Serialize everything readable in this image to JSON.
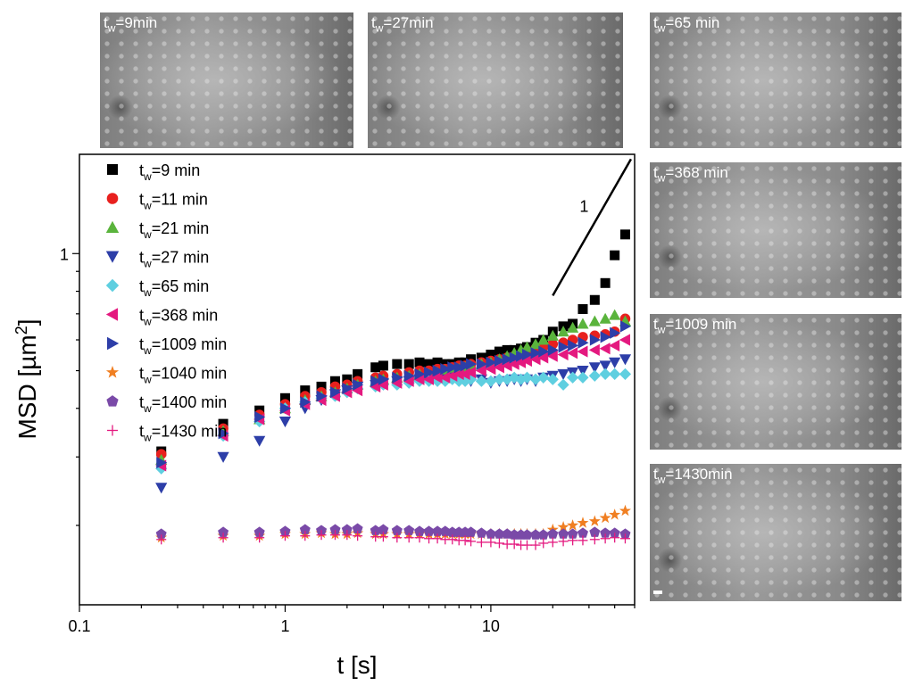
{
  "micrographs": [
    {
      "label": "tw=9min",
      "sub": "w",
      "pre": "t",
      "post": "=9min"
    },
    {
      "label": "tw=27min",
      "pre": "t",
      "sub": "w",
      "post": "=27min"
    },
    {
      "label": "tw=65 min",
      "pre": "t",
      "sub": "w",
      "post": "=65 min"
    },
    {
      "label": "tw=368 min",
      "pre": "t",
      "sub": "w",
      "post": "=368 min"
    },
    {
      "label": "tw=1009 min",
      "pre": "t",
      "sub": "w",
      "post": "=1009 min"
    },
    {
      "label": "tw=1430min",
      "pre": "t",
      "sub": "w",
      "post": "=1430min"
    }
  ],
  "chart_data": {
    "type": "scatter",
    "xlabel": "t [s]",
    "ylabel": "MSD [µm²]",
    "ylabel_main": "MSD [µm",
    "ylabel_sup": "2",
    "ylabel_end": "]",
    "xscale": "log",
    "yscale": "log",
    "xlim": [
      0.1,
      50
    ],
    "ylim": [
      0.125,
      1.8
    ],
    "xticks": [
      {
        "v": 0.1,
        "label": "0.1"
      },
      {
        "v": 1,
        "label": "1"
      },
      {
        "v": 10,
        "label": "10"
      }
    ],
    "yticks": [
      {
        "v": 1,
        "label": "1"
      }
    ],
    "slope_label": "1",
    "legend_position": "top-left",
    "x": [
      0.25,
      0.5,
      0.75,
      1.0,
      1.25,
      1.5,
      1.75,
      2.0,
      2.25,
      2.75,
      3.0,
      3.5,
      4.0,
      4.5,
      5.0,
      5.5,
      6.0,
      6.5,
      7.0,
      7.5,
      8.0,
      9.0,
      10.0,
      11.0,
      12.0,
      13.0,
      14.0,
      15.0,
      16.5,
      18.0,
      20.0,
      22.5,
      25.0,
      28.0,
      32.0,
      36.0,
      40.0,
      45.0
    ],
    "series": [
      {
        "name": "tw=9 min",
        "pre": "t",
        "sub": "w",
        "post": "=9 min",
        "marker": "square",
        "color": "#000000",
        "values": [
          0.31,
          0.365,
          0.395,
          0.425,
          0.445,
          0.455,
          0.47,
          0.475,
          0.49,
          0.51,
          0.515,
          0.52,
          0.52,
          0.525,
          0.52,
          0.525,
          0.52,
          0.52,
          0.525,
          0.525,
          0.535,
          0.54,
          0.55,
          0.56,
          0.565,
          0.565,
          0.57,
          0.575,
          0.59,
          0.6,
          0.63,
          0.65,
          0.66,
          0.72,
          0.76,
          0.84,
          0.99,
          1.12
        ]
      },
      {
        "name": "tw=11 min",
        "pre": "t",
        "sub": "w",
        "post": "=11 min",
        "marker": "circle",
        "color": "#e8201e",
        "values": [
          0.305,
          0.355,
          0.385,
          0.41,
          0.43,
          0.44,
          0.455,
          0.46,
          0.47,
          0.48,
          0.485,
          0.49,
          0.495,
          0.5,
          0.5,
          0.505,
          0.505,
          0.51,
          0.515,
          0.515,
          0.52,
          0.525,
          0.53,
          0.535,
          0.54,
          0.545,
          0.55,
          0.56,
          0.57,
          0.575,
          0.585,
          0.59,
          0.6,
          0.61,
          0.615,
          0.62,
          0.63,
          0.68
        ]
      },
      {
        "name": "tw=21 min",
        "pre": "t",
        "sub": "w",
        "post": "=21 min",
        "marker": "triangle-up",
        "color": "#5ab43c",
        "values": [
          0.295,
          0.35,
          0.375,
          0.4,
          0.42,
          0.43,
          0.44,
          0.45,
          0.46,
          0.47,
          0.475,
          0.48,
          0.485,
          0.49,
          0.49,
          0.495,
          0.5,
          0.5,
          0.505,
          0.51,
          0.515,
          0.52,
          0.525,
          0.535,
          0.545,
          0.555,
          0.565,
          0.575,
          0.585,
          0.6,
          0.615,
          0.63,
          0.645,
          0.66,
          0.67,
          0.68,
          0.695,
          0.67
        ]
      },
      {
        "name": "tw=27 min",
        "pre": "t",
        "sub": "w",
        "post": "=27 min",
        "marker": "triangle-down",
        "color": "#2d3ea8",
        "values": [
          0.25,
          0.3,
          0.33,
          0.37,
          0.4,
          0.42,
          0.435,
          0.445,
          0.455,
          0.46,
          0.465,
          0.47,
          0.47,
          0.475,
          0.475,
          0.48,
          0.475,
          0.48,
          0.48,
          0.475,
          0.47,
          0.475,
          0.465,
          0.47,
          0.47,
          0.475,
          0.47,
          0.475,
          0.47,
          0.48,
          0.485,
          0.49,
          0.495,
          0.5,
          0.51,
          0.515,
          0.525,
          0.535
        ]
      },
      {
        "name": "tw=65 min",
        "pre": "t",
        "sub": "w",
        "post": "=65 min",
        "marker": "diamond",
        "color": "#5fcfe0",
        "values": [
          0.28,
          0.34,
          0.37,
          0.4,
          0.415,
          0.425,
          0.43,
          0.44,
          0.45,
          0.455,
          0.46,
          0.46,
          0.465,
          0.47,
          0.47,
          0.47,
          0.47,
          0.475,
          0.47,
          0.47,
          0.475,
          0.47,
          0.47,
          0.475,
          0.475,
          0.48,
          0.475,
          0.48,
          0.475,
          0.48,
          0.475,
          0.46,
          0.48,
          0.48,
          0.485,
          0.49,
          0.49,
          0.49
        ]
      },
      {
        "name": "tw=368 min",
        "pre": "t",
        "sub": "w",
        "post": "=368 min",
        "marker": "triangle-left",
        "color": "#e4197f",
        "values": [
          0.285,
          0.34,
          0.375,
          0.395,
          0.41,
          0.42,
          0.43,
          0.44,
          0.445,
          0.455,
          0.46,
          0.465,
          0.47,
          0.475,
          0.475,
          0.48,
          0.48,
          0.485,
          0.49,
          0.49,
          0.495,
          0.5,
          0.505,
          0.51,
          0.515,
          0.52,
          0.525,
          0.53,
          0.535,
          0.54,
          0.545,
          0.55,
          0.555,
          0.56,
          0.565,
          0.57,
          0.58,
          0.6
        ]
      },
      {
        "name": "tw=1009 min",
        "pre": "t",
        "sub": "w",
        "post": "=1009 min",
        "marker": "triangle-right",
        "color": "#2d3ea8",
        "values": [
          0.29,
          0.345,
          0.38,
          0.4,
          0.415,
          0.43,
          0.44,
          0.45,
          0.46,
          0.47,
          0.475,
          0.48,
          0.485,
          0.49,
          0.495,
          0.5,
          0.505,
          0.51,
          0.51,
          0.515,
          0.52,
          0.52,
          0.525,
          0.53,
          0.535,
          0.54,
          0.545,
          0.55,
          0.555,
          0.56,
          0.565,
          0.575,
          0.58,
          0.59,
          0.6,
          0.61,
          0.625,
          0.65
        ]
      },
      {
        "name": "tw=1040 min",
        "pre": "t",
        "sub": "w",
        "post": "=1040 min",
        "marker": "star",
        "color": "#f07f22",
        "values": [
          0.186,
          0.188,
          0.188,
          0.19,
          0.19,
          0.191,
          0.19,
          0.19,
          0.191,
          0.19,
          0.19,
          0.19,
          0.19,
          0.19,
          0.19,
          0.19,
          0.19,
          0.19,
          0.19,
          0.19,
          0.19,
          0.19,
          0.19,
          0.19,
          0.19,
          0.19,
          0.19,
          0.19,
          0.19,
          0.19,
          0.195,
          0.198,
          0.2,
          0.203,
          0.205,
          0.209,
          0.213,
          0.218
        ]
      },
      {
        "name": "tw=1400 min",
        "pre": "t",
        "sub": "w",
        "post": "=1400 min",
        "marker": "pentagon",
        "color": "#7a4aa8",
        "values": [
          0.19,
          0.192,
          0.192,
          0.193,
          0.195,
          0.194,
          0.195,
          0.195,
          0.196,
          0.194,
          0.195,
          0.194,
          0.194,
          0.193,
          0.193,
          0.193,
          0.193,
          0.192,
          0.192,
          0.192,
          0.192,
          0.191,
          0.19,
          0.19,
          0.19,
          0.189,
          0.189,
          0.189,
          0.189,
          0.189,
          0.19,
          0.19,
          0.19,
          0.191,
          0.192,
          0.191,
          0.191,
          0.19
        ]
      },
      {
        "name": "tw=1430 min",
        "pre": "t",
        "sub": "w",
        "post": "=1430 min",
        "marker": "plus",
        "color": "#e4197f",
        "values": [
          0.184,
          0.186,
          0.186,
          0.188,
          0.188,
          0.189,
          0.189,
          0.189,
          0.188,
          0.187,
          0.187,
          0.186,
          0.186,
          0.186,
          0.185,
          0.185,
          0.184,
          0.184,
          0.183,
          0.183,
          0.182,
          0.181,
          0.181,
          0.18,
          0.179,
          0.179,
          0.178,
          0.178,
          0.178,
          0.18,
          0.181,
          0.182,
          0.183,
          0.183,
          0.184,
          0.185,
          0.186,
          0.185
        ]
      }
    ]
  }
}
